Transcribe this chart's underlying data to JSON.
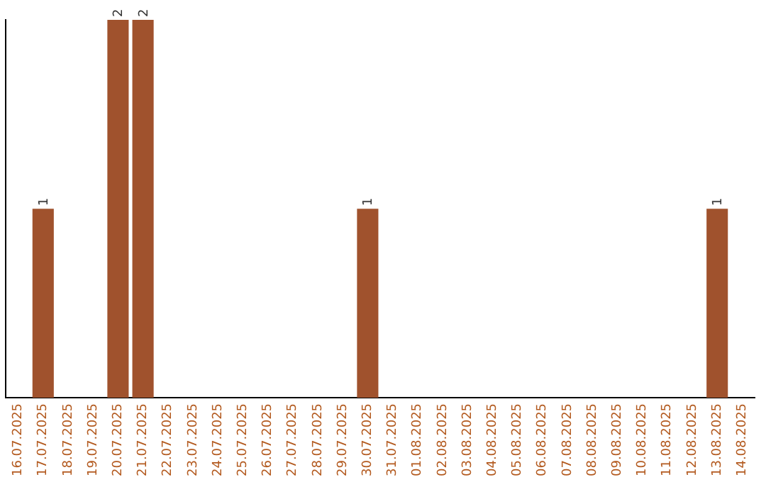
{
  "chart_data": {
    "type": "bar",
    "categories": [
      "16.07.2025",
      "17.07.2025",
      "18.07.2025",
      "19.07.2025",
      "20.07.2025",
      "21.07.2025",
      "22.07.2025",
      "23.07.2025",
      "24.07.2025",
      "25.07.2025",
      "26.07.2025",
      "27.07.2025",
      "28.07.2025",
      "29.07.2025",
      "30.07.2025",
      "31.07.2025",
      "01.08.2025",
      "02.08.2025",
      "03.08.2025",
      "04.08.2025",
      "05.08.2025",
      "06.08.2025",
      "07.08.2025",
      "08.08.2025",
      "09.08.2025",
      "10.08.2025",
      "11.08.2025",
      "12.08.2025",
      "13.08.2025",
      "14.08.2025"
    ],
    "values": [
      0,
      1,
      0,
      0,
      2,
      2,
      0,
      0,
      0,
      0,
      0,
      0,
      0,
      0,
      1,
      0,
      0,
      0,
      0,
      0,
      0,
      0,
      0,
      0,
      0,
      0,
      0,
      0,
      1,
      0
    ],
    "value_labels": [
      null,
      "1",
      null,
      null,
      "2",
      "2",
      null,
      null,
      null,
      null,
      null,
      null,
      null,
      null,
      "1",
      null,
      null,
      null,
      null,
      null,
      null,
      null,
      null,
      null,
      null,
      null,
      null,
      null,
      "1",
      null
    ],
    "color": "#a0522d",
    "grid": false,
    "legend": false,
    "tick_labels": "x"
  }
}
